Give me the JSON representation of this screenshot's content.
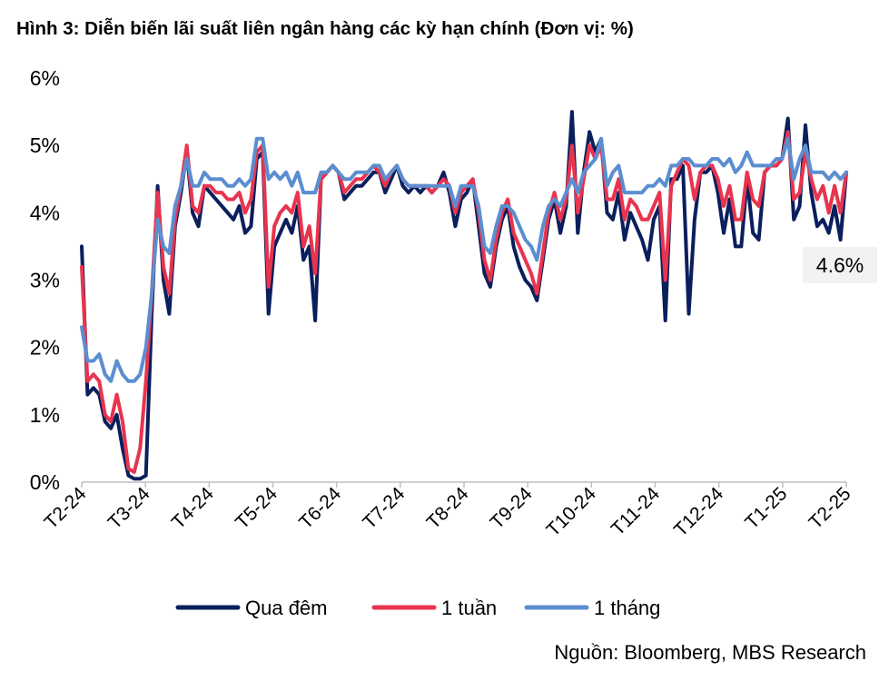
{
  "title": "Hình 3: Diễn biến lãi suất liên ngân hàng các kỳ hạn chính (Đơn vị: %)",
  "source": "Nguồn: Bloomberg, MBS Research",
  "chart_data": {
    "type": "line",
    "x_tick_labels": [
      "T2-24",
      "T3-24",
      "T4-24",
      "T5-24",
      "T6-24",
      "T7-24",
      "T8-24",
      "T9-24",
      "T10-24",
      "T11-24",
      "T12-24",
      "T1-25",
      "T2-25"
    ],
    "y_tick_labels": [
      "0%",
      "1%",
      "2%",
      "3%",
      "4%",
      "5%",
      "6%"
    ],
    "ylim": [
      0,
      6
    ],
    "grid": false,
    "legend_position": "bottom",
    "annotation": {
      "text": "4.6%",
      "value": 4.6
    },
    "series": [
      {
        "name": "Qua đêm",
        "color": "#0a1f5c",
        "values": [
          3.5,
          1.3,
          1.4,
          1.3,
          0.9,
          0.8,
          1.0,
          0.5,
          0.1,
          0.05,
          0.05,
          0.1,
          2.5,
          4.4,
          3.0,
          2.5,
          3.8,
          4.3,
          4.9,
          4.0,
          3.8,
          4.4,
          4.3,
          4.2,
          4.1,
          4.0,
          3.9,
          4.1,
          3.7,
          3.8,
          4.8,
          4.9,
          2.5,
          3.5,
          3.7,
          3.9,
          3.7,
          4.1,
          3.3,
          3.5,
          2.4,
          4.5,
          4.6,
          4.7,
          4.6,
          4.2,
          4.3,
          4.4,
          4.4,
          4.5,
          4.6,
          4.6,
          4.3,
          4.5,
          4.7,
          4.4,
          4.3,
          4.4,
          4.3,
          4.4,
          4.3,
          4.4,
          4.6,
          4.3,
          3.8,
          4.2,
          4.3,
          4.5,
          3.8,
          3.1,
          2.9,
          3.5,
          3.9,
          4.1,
          3.5,
          3.2,
          3.0,
          2.9,
          2.7,
          3.3,
          3.9,
          4.2,
          3.7,
          4.1,
          5.5,
          3.7,
          4.6,
          5.2,
          4.9,
          5.1,
          4.0,
          3.9,
          4.3,
          3.6,
          4.0,
          3.8,
          3.6,
          3.3,
          3.9,
          4.1,
          2.4,
          4.5,
          4.5,
          4.7,
          2.5,
          3.9,
          4.6,
          4.6,
          4.7,
          4.3,
          3.7,
          4.2,
          3.5,
          3.5,
          4.5,
          3.7,
          3.6,
          4.6,
          4.7,
          4.7,
          4.8,
          5.4,
          3.9,
          4.1,
          5.3,
          4.3,
          3.8,
          3.9,
          3.7,
          4.1,
          3.6,
          4.6
        ]
      },
      {
        "name": "1 tuần",
        "color": "#e8344e",
        "values": [
          3.2,
          1.5,
          1.6,
          1.5,
          1.0,
          0.9,
          1.3,
          0.9,
          0.2,
          0.15,
          0.5,
          1.5,
          2.8,
          4.3,
          3.2,
          2.8,
          3.9,
          4.4,
          5.0,
          4.1,
          4.0,
          4.4,
          4.4,
          4.3,
          4.3,
          4.2,
          4.2,
          4.3,
          4.0,
          4.2,
          4.9,
          5.0,
          2.9,
          3.8,
          4.0,
          4.1,
          4.0,
          4.3,
          3.5,
          3.8,
          3.1,
          4.5,
          4.6,
          4.7,
          4.6,
          4.3,
          4.4,
          4.5,
          4.5,
          4.6,
          4.7,
          4.6,
          4.4,
          4.6,
          4.7,
          4.5,
          4.4,
          4.4,
          4.4,
          4.4,
          4.3,
          4.4,
          4.5,
          4.4,
          4.0,
          4.3,
          4.4,
          4.5,
          4.0,
          3.3,
          3.0,
          3.6,
          4.0,
          4.2,
          3.7,
          3.5,
          3.3,
          3.1,
          2.8,
          3.4,
          4.0,
          4.3,
          3.9,
          4.2,
          5.0,
          4.0,
          4.5,
          5.0,
          4.8,
          5.0,
          4.2,
          4.2,
          4.5,
          3.9,
          4.2,
          4.1,
          3.9,
          3.9,
          4.1,
          4.3,
          3.0,
          4.4,
          4.6,
          4.8,
          4.7,
          4.2,
          4.6,
          4.7,
          4.7,
          4.5,
          4.1,
          4.4,
          3.9,
          3.9,
          4.6,
          4.2,
          4.1,
          4.6,
          4.7,
          4.7,
          4.8,
          5.2,
          4.2,
          4.3,
          4.9,
          4.5,
          4.2,
          4.4,
          4.0,
          4.4,
          4.0,
          4.6
        ]
      },
      {
        "name": "1 tháng",
        "color": "#5b8ed0",
        "values": [
          2.3,
          1.8,
          1.8,
          1.9,
          1.6,
          1.5,
          1.8,
          1.6,
          1.5,
          1.5,
          1.6,
          2.0,
          2.8,
          3.9,
          3.5,
          3.4,
          4.1,
          4.4,
          4.8,
          4.4,
          4.4,
          4.6,
          4.5,
          4.5,
          4.5,
          4.4,
          4.4,
          4.5,
          4.4,
          4.5,
          5.1,
          5.1,
          4.5,
          4.6,
          4.5,
          4.6,
          4.4,
          4.6,
          4.3,
          4.3,
          4.3,
          4.6,
          4.6,
          4.7,
          4.6,
          4.5,
          4.5,
          4.6,
          4.6,
          4.6,
          4.7,
          4.7,
          4.5,
          4.6,
          4.7,
          4.5,
          4.4,
          4.4,
          4.4,
          4.4,
          4.4,
          4.4,
          4.4,
          4.4,
          4.1,
          4.4,
          4.4,
          4.4,
          4.1,
          3.5,
          3.4,
          3.8,
          4.1,
          4.1,
          4.0,
          3.8,
          3.6,
          3.5,
          3.3,
          3.8,
          4.1,
          4.2,
          4.1,
          4.3,
          4.5,
          4.3,
          4.6,
          4.7,
          4.8,
          5.1,
          4.4,
          4.6,
          4.7,
          4.3,
          4.3,
          4.3,
          4.3,
          4.4,
          4.4,
          4.5,
          4.4,
          4.7,
          4.7,
          4.8,
          4.8,
          4.7,
          4.7,
          4.7,
          4.8,
          4.8,
          4.7,
          4.8,
          4.6,
          4.7,
          4.9,
          4.7,
          4.7,
          4.7,
          4.7,
          4.8,
          4.8,
          5.1,
          4.5,
          4.8,
          5.0,
          4.6,
          4.6,
          4.6,
          4.5,
          4.6,
          4.5,
          4.6
        ]
      }
    ]
  }
}
